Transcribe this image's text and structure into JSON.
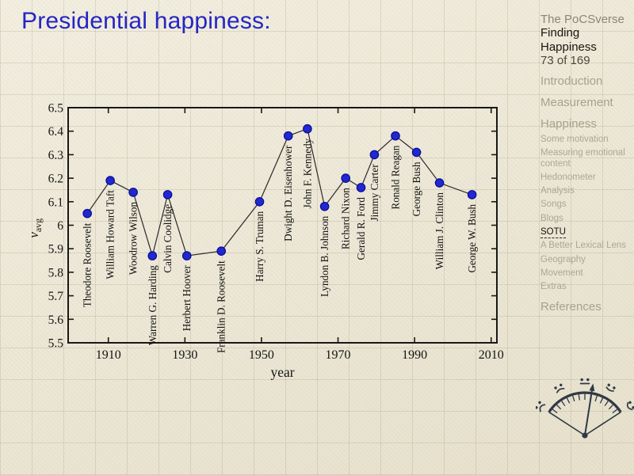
{
  "slide": {
    "title": "Presidential happiness:",
    "title_color": "#2525c4"
  },
  "sidebar": {
    "deck": "The PoCSverse",
    "lecture": "Finding Happiness",
    "page": "73 of 169",
    "sections": [
      {
        "label": "Introduction",
        "level": 1
      },
      {
        "label": "Measurement",
        "level": 1
      },
      {
        "label": "Happiness",
        "level": 1
      },
      {
        "label": "Some motivation",
        "level": 2
      },
      {
        "label": "Measuring emotional content",
        "level": 2
      },
      {
        "label": "Hedonometer",
        "level": 2
      },
      {
        "label": "Analysis",
        "level": 2
      },
      {
        "label": "Songs",
        "level": 2
      },
      {
        "label": "Blogs",
        "level": 2
      },
      {
        "label": "SOTU",
        "level": 2,
        "active": true
      },
      {
        "label": "A Better Lexical Lens",
        "level": 2
      },
      {
        "label": "Geography",
        "level": 2
      },
      {
        "label": "Movement",
        "level": 2
      },
      {
        "label": "Extras",
        "level": 2
      },
      {
        "label": "References",
        "level": 1
      }
    ]
  },
  "chart_data": {
    "type": "line",
    "title": "",
    "xlabel": "year",
    "ylabel": "v_avg",
    "xlim": [
      1899.5,
      2011.5
    ],
    "ylim": [
      5.5,
      6.5
    ],
    "xticks": [
      1910,
      1930,
      1950,
      1970,
      1990,
      2010
    ],
    "ytick_values": [
      5.5,
      5.6,
      5.7,
      5.8,
      5.9,
      6.0,
      6.1,
      6.2,
      6.3,
      6.4,
      6.5
    ],
    "ytick_labels": [
      "5.5",
      "5.6",
      "5.7",
      "5.8",
      "5.9",
      "6",
      "6.1",
      "6.2",
      "6.3",
      "6.4",
      "6.5"
    ],
    "grid": false,
    "legend": false,
    "marker": {
      "shape": "circle",
      "fill": "#2028d2",
      "edge": "#0b0b8e"
    },
    "line_color": "#2b2b2b",
    "axis_color": "#181818",
    "points": [
      {
        "president": "Theodore Roosevelt",
        "year": 1904.5,
        "v_avg": 6.05
      },
      {
        "president": "William Howard Taft",
        "year": 1910.5,
        "v_avg": 6.19
      },
      {
        "president": "Woodrow Wilson",
        "year": 1916.5,
        "v_avg": 6.14
      },
      {
        "president": "Warren G. Harding",
        "year": 1921.5,
        "v_avg": 5.87
      },
      {
        "president": "Calvin Coolidge",
        "year": 1925.5,
        "v_avg": 6.13
      },
      {
        "president": "Herbert Hoover",
        "year": 1930.5,
        "v_avg": 5.87
      },
      {
        "president": "Franklin D. Roosevelt",
        "year": 1939.5,
        "v_avg": 5.89
      },
      {
        "president": "Harry S. Truman",
        "year": 1949.5,
        "v_avg": 6.1
      },
      {
        "president": "Dwight D. Eisenhower",
        "year": 1957,
        "v_avg": 6.38
      },
      {
        "president": "John F. Kennedy",
        "year": 1962,
        "v_avg": 6.41
      },
      {
        "president": "Lyndon B. Johnson",
        "year": 1966.5,
        "v_avg": 6.08
      },
      {
        "president": "Richard Nixon",
        "year": 1972,
        "v_avg": 6.2
      },
      {
        "president": "Gerald R. Ford",
        "year": 1976,
        "v_avg": 6.16
      },
      {
        "president": "Jimmy Carter",
        "year": 1979.5,
        "v_avg": 6.3
      },
      {
        "president": "Ronald Reagan",
        "year": 1985,
        "v_avg": 6.38
      },
      {
        "president": "George Bush",
        "year": 1990.5,
        "v_avg": 6.31
      },
      {
        "president": "William J. Clinton",
        "year": 1996.5,
        "v_avg": 6.18
      },
      {
        "president": "George W. Bush",
        "year": 2005,
        "v_avg": 6.13
      }
    ]
  },
  "logo": {
    "name": "hedonometer-gauge",
    "color": "#2f3945"
  }
}
